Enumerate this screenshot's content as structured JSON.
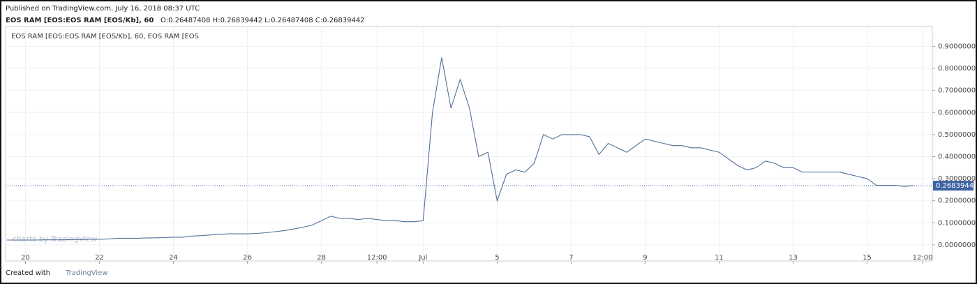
{
  "header": {
    "published": "Published on TradingView.com, July 16, 2018 08:37 UTC",
    "symbol": "EOS RAM [EOS:EOS RAM [EOS/Kb], 60",
    "ohlc": "O:0.26487408 H:0.26839442 L:0.26487408 C:0.26839442"
  },
  "watermark": "charts by TradingView",
  "footer": {
    "created_with": "Created with",
    "brand": "TradingView"
  },
  "chart_data": {
    "type": "line",
    "categories": [
      null,
      null,
      "20",
      null,
      null,
      null,
      null,
      null,
      null,
      null,
      "22",
      null,
      null,
      null,
      null,
      null,
      null,
      null,
      "24",
      null,
      null,
      null,
      null,
      null,
      null,
      null,
      "26",
      null,
      null,
      null,
      null,
      null,
      null,
      null,
      "28",
      null,
      null,
      null,
      null,
      null,
      "12:00",
      null,
      null,
      null,
      null,
      "Jul",
      null,
      null,
      null,
      null,
      null,
      null,
      null,
      "5",
      null,
      null,
      null,
      null,
      null,
      null,
      null,
      "7",
      null,
      null,
      null,
      null,
      null,
      null,
      null,
      "9",
      null,
      null,
      null,
      null,
      null,
      null,
      null,
      "11",
      null,
      null,
      null,
      null,
      null,
      null,
      null,
      "13",
      null,
      null,
      null,
      null,
      null,
      null,
      null,
      "15",
      null,
      null,
      null,
      null,
      null,
      "12:00",
      null
    ],
    "series": [
      {
        "name": "EOS RAM [EOS:EOS RAM [EOS/Kb], 60, EOS RAM [EOS",
        "color": "#4f6f99",
        "values": [
          0.022,
          0.022,
          0.022,
          0.022,
          0.023,
          0.023,
          0.023,
          0.024,
          0.024,
          0.025,
          0.025,
          0.027,
          0.03,
          0.03,
          0.03,
          0.031,
          0.032,
          0.033,
          0.035,
          0.035,
          0.04,
          0.042,
          0.045,
          0.048,
          0.05,
          0.05,
          0.05,
          0.052,
          0.055,
          0.06,
          0.065,
          0.072,
          0.08,
          0.09,
          0.11,
          0.13,
          0.12,
          0.12,
          0.115,
          0.12,
          0.115,
          0.11,
          0.11,
          0.105,
          0.105,
          0.11,
          0.6,
          0.85,
          0.62,
          0.75,
          0.62,
          0.4,
          0.42,
          0.2,
          0.32,
          0.34,
          0.33,
          0.37,
          0.5,
          0.48,
          0.5,
          0.5,
          0.5,
          0.49,
          0.41,
          0.46,
          0.44,
          0.42,
          0.45,
          0.48,
          0.47,
          0.46,
          0.45,
          0.45,
          0.44,
          0.44,
          0.43,
          0.42,
          0.39,
          0.36,
          0.34,
          0.35,
          0.38,
          0.37,
          0.35,
          0.35,
          0.33,
          0.33,
          0.33,
          0.33,
          0.33,
          0.32,
          0.31,
          0.3,
          0.27,
          0.27,
          0.27,
          0.265,
          0.268,
          null,
          null
        ]
      }
    ],
    "last_value": 0.26839442,
    "last_color": "#3d63a3",
    "ylim": [
      -0.073,
      0.99
    ],
    "yticks": [
      {
        "value": 0,
        "label": "0.00000000"
      },
      {
        "value": 0.1,
        "label": "0.10000000"
      },
      {
        "value": 0.2,
        "label": "0.20000000"
      },
      {
        "value": 0.3,
        "label": "0.30000000"
      },
      {
        "value": 0.4,
        "label": "0.40000000"
      },
      {
        "value": 0.5,
        "label": "0.50000000"
      },
      {
        "value": 0.6,
        "label": "0.60000000"
      },
      {
        "value": 0.7,
        "label": "0.70000000"
      },
      {
        "value": 0.8,
        "label": "0.80000000"
      },
      {
        "value": 0.9,
        "label": "0.90000000"
      }
    ],
    "grid": true
  }
}
